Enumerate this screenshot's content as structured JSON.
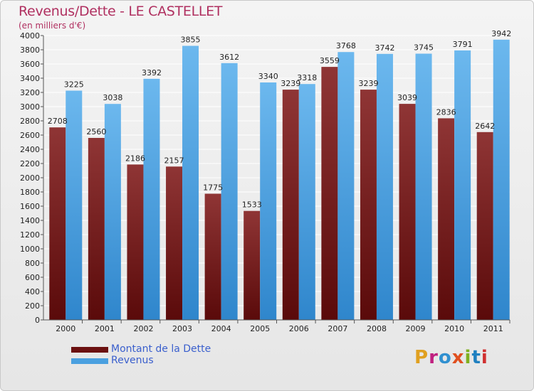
{
  "title": "Revenus/Dette - LE CASTELLET",
  "subtitle": "(en milliers d'€)",
  "colors": {
    "title": "#b03060",
    "legend_text": "#3a5fcd",
    "debt_light": "#8f3535",
    "debt_dark": "#5a0a0a",
    "revenue_light": "#6cb8ee",
    "revenue_dark": "#2f86cc",
    "grid": "#ffffff",
    "axis": "#555555"
  },
  "legend": [
    {
      "label": "Montant de la Dette",
      "color": "#6b1010"
    },
    {
      "label": "Revenus",
      "color": "#4aa0e0"
    }
  ],
  "logo": {
    "text": "Proxiti",
    "colors": [
      "#e0a020",
      "#c02080",
      "#3090d0",
      "#e05020",
      "#80b020",
      "#2080c0",
      "#d03030"
    ]
  },
  "chart_data": {
    "type": "bar",
    "categories": [
      "2000",
      "2001",
      "2002",
      "2003",
      "2004",
      "2005",
      "2006",
      "2007",
      "2008",
      "2009",
      "2010",
      "2011"
    ],
    "series": [
      {
        "name": "Montant de la Dette",
        "values": [
          2708,
          2560,
          2186,
          2157,
          1775,
          1533,
          3239,
          3559,
          3239,
          3039,
          2836,
          2642
        ],
        "labels": [
          "2708",
          "2560",
          "2186",
          "2157",
          "1775",
          "1533",
          "3239",
          "3559",
          "3239",
          "3039",
          "2836",
          "2642"
        ]
      },
      {
        "name": "Revenus",
        "values": [
          3225,
          3038,
          3392,
          3855,
          3612,
          3340,
          3318,
          3768,
          3742,
          3745,
          3791,
          3942
        ],
        "labels": [
          "3225",
          "3038",
          "3392",
          "3855",
          "3612",
          "3340",
          "3318",
          "3768",
          "3742",
          "3745",
          "3791",
          "3942"
        ]
      }
    ],
    "ylim": [
      0,
      4000
    ],
    "ytick_step": 200,
    "grid": true,
    "legend_position": "bottom-left"
  }
}
